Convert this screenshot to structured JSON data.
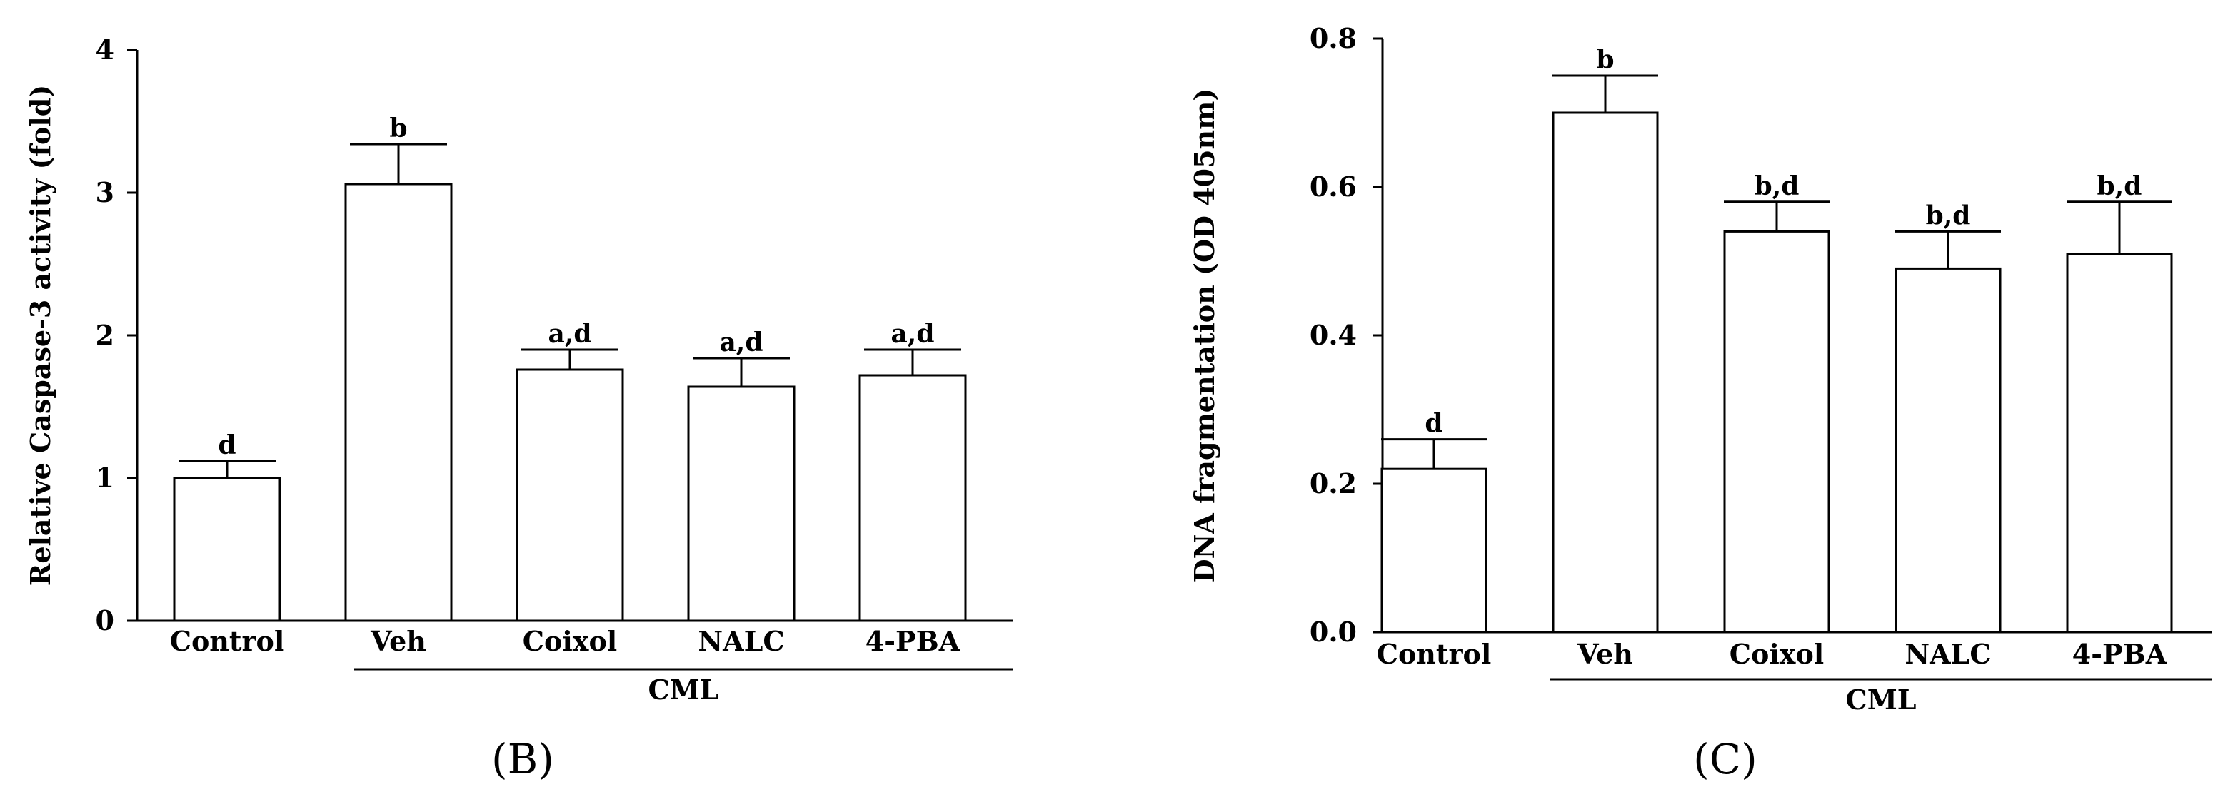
{
  "charts": [
    {
      "panel_label": "(B)",
      "group_label": "CML",
      "chart_data": {
        "type": "bar",
        "title": "",
        "xlabel": "",
        "ylabel": "Relative Caspase-3 activity (fold)",
        "categories": [
          "Control",
          "Veh",
          "Coixol",
          "NALC",
          "4-PBA"
        ],
        "values": [
          1.0,
          3.06,
          1.76,
          1.64,
          1.72
        ],
        "errors": [
          0.12,
          0.28,
          0.14,
          0.2,
          0.18
        ],
        "significance": [
          "d",
          "b",
          "a,d",
          "a,d",
          "a,d"
        ],
        "ylim": [
          0,
          4
        ],
        "yticks": [
          "0",
          "1",
          "2",
          "3",
          "4"
        ],
        "ytick_values": [
          0,
          1,
          2,
          3,
          4
        ],
        "group": {
          "label": "CML",
          "from_category": 1,
          "to_category": 4
        },
        "grid": false,
        "bar_fill": "#ffffff",
        "bar_stroke": "#000000"
      }
    },
    {
      "panel_label": "(C)",
      "group_label": "CML",
      "chart_data": {
        "type": "bar",
        "title": "",
        "xlabel": "",
        "ylabel": "DNA fragmentation (OD 405nm)",
        "categories": [
          "Control",
          "Veh",
          "Coixol",
          "NALC",
          "4-PBA"
        ],
        "values": [
          0.22,
          0.7,
          0.54,
          0.49,
          0.51
        ],
        "errors": [
          0.04,
          0.05,
          0.04,
          0.05,
          0.07
        ],
        "significance": [
          "d",
          "b",
          "b,d",
          "b,d",
          "b,d"
        ],
        "ylim": [
          0,
          0.8
        ],
        "yticks": [
          "0.0",
          "0.2",
          "0.4",
          "0.6",
          "0.8"
        ],
        "ytick_values": [
          0,
          0.2,
          0.4,
          0.6,
          0.8
        ],
        "group": {
          "label": "CML",
          "from_category": 1,
          "to_category": 4
        },
        "grid": false,
        "bar_fill": "#ffffff",
        "bar_stroke": "#000000"
      }
    }
  ]
}
